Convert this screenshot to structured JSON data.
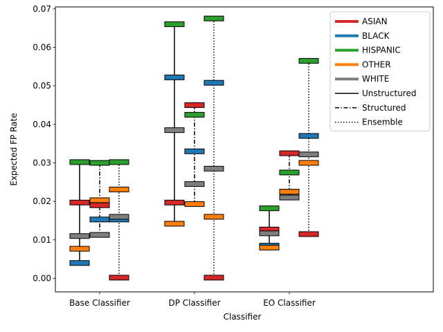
{
  "chart_data": {
    "type": "errorbar-range",
    "title": "",
    "xlabel": "Classifier",
    "ylabel": "Expected FP Rate",
    "ylim": [
      -0.0035,
      0.0705
    ],
    "yticks": [
      0.0,
      0.01,
      0.02,
      0.03,
      0.04,
      0.05,
      0.06,
      0.07
    ],
    "ytick_labels": [
      "0.00",
      "0.01",
      "0.02",
      "0.03",
      "0.04",
      "0.05",
      "0.06",
      "0.07"
    ],
    "categories": [
      "Base Classifier",
      "DP Classifier",
      "EO Classifier"
    ],
    "methods": [
      {
        "name": "Unstructured",
        "style": "solid"
      },
      {
        "name": "Structured",
        "style": "dashdot"
      },
      {
        "name": "Ensemble",
        "style": "dotted"
      }
    ],
    "groups": [
      {
        "name": "ASIAN",
        "color": "#d62728"
      },
      {
        "name": "BLACK",
        "color": "#1f77b4"
      },
      {
        "name": "HISPANIC",
        "color": "#2ca02c"
      },
      {
        "name": "OTHER",
        "color": "#ff7f0e"
      },
      {
        "name": "WHITE",
        "color": "#7f7f7f"
      }
    ],
    "values": [
      {
        "classifier": "Base Classifier",
        "method": "Unstructured",
        "ASIAN": 0.0197,
        "BLACK": 0.004,
        "HISPANIC": 0.0302,
        "OTHER": 0.0077,
        "WHITE": 0.011
      },
      {
        "classifier": "Base Classifier",
        "method": "Structured",
        "ASIAN": 0.019,
        "BLACK": 0.0153,
        "HISPANIC": 0.03,
        "OTHER": 0.0203,
        "WHITE": 0.0113
      },
      {
        "classifier": "Base Classifier",
        "method": "Ensemble",
        "ASIAN": 0.0002,
        "BLACK": 0.0153,
        "HISPANIC": 0.0302,
        "OTHER": 0.0231,
        "WHITE": 0.016
      },
      {
        "classifier": "DP Classifier",
        "method": "Unstructured",
        "ASIAN": 0.0197,
        "BLACK": 0.0522,
        "HISPANIC": 0.066,
        "OTHER": 0.0142,
        "WHITE": 0.0385
      },
      {
        "classifier": "DP Classifier",
        "method": "Structured",
        "ASIAN": 0.045,
        "BLACK": 0.033,
        "HISPANIC": 0.0425,
        "OTHER": 0.0193,
        "WHITE": 0.0245
      },
      {
        "classifier": "DP Classifier",
        "method": "Ensemble",
        "ASIAN": 0.0002,
        "BLACK": 0.0508,
        "HISPANIC": 0.0675,
        "OTHER": 0.016,
        "WHITE": 0.0285
      },
      {
        "classifier": "EO Classifier",
        "method": "Unstructured",
        "ASIAN": 0.0127,
        "BLACK": 0.0085,
        "HISPANIC": 0.0182,
        "OTHER": 0.008,
        "WHITE": 0.0117
      },
      {
        "classifier": "EO Classifier",
        "method": "Structured",
        "ASIAN": 0.0325,
        "BLACK": 0.0225,
        "HISPANIC": 0.0275,
        "OTHER": 0.0225,
        "WHITE": 0.021
      },
      {
        "classifier": "EO Classifier",
        "method": "Ensemble",
        "ASIAN": 0.0115,
        "BLACK": 0.037,
        "HISPANIC": 0.0565,
        "OTHER": 0.03,
        "WHITE": 0.0322
      }
    ],
    "legend": {
      "position": "top-right"
    },
    "grid": false
  }
}
